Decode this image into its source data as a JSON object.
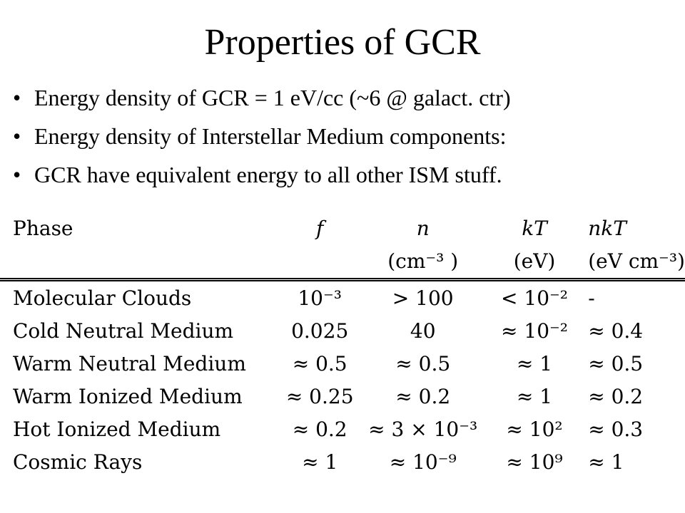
{
  "slide": {
    "title": "Properties of GCR",
    "bullets": [
      "Energy density of GCR = 1 eV/cc (~6 @ galact. ctr)",
      "Energy density of Interstellar Medium components:",
      "GCR have equivalent energy to all other ISM stuff."
    ]
  },
  "table": {
    "headers": [
      "Phase",
      "f",
      "n",
      "kT",
      "nkT"
    ],
    "units": [
      "",
      "",
      "(cm⁻³ )",
      "(eV)",
      "(eV cm⁻³)"
    ],
    "rows": [
      [
        "Molecular Clouds",
        "10⁻³",
        "> 100",
        "< 10⁻²",
        "-"
      ],
      [
        "Cold Neutral Medium",
        "0.025",
        "40",
        "≈ 10⁻²",
        "≈ 0.4"
      ],
      [
        "Warm Neutral Medium",
        "≈ 0.5",
        "≈ 0.5",
        "≈ 1",
        "≈ 0.5"
      ],
      [
        "Warm Ionized Medium",
        "≈ 0.25",
        "≈ 0.2",
        "≈ 1",
        "≈ 0.2"
      ],
      [
        "Hot Ionized Medium",
        "≈ 0.2",
        "≈ 3 × 10⁻³",
        "≈ 10²",
        "≈ 0.3"
      ],
      [
        "Cosmic Rays",
        "≈ 1",
        "≈ 10⁻⁹",
        "≈ 10⁹",
        "≈ 1"
      ]
    ]
  }
}
